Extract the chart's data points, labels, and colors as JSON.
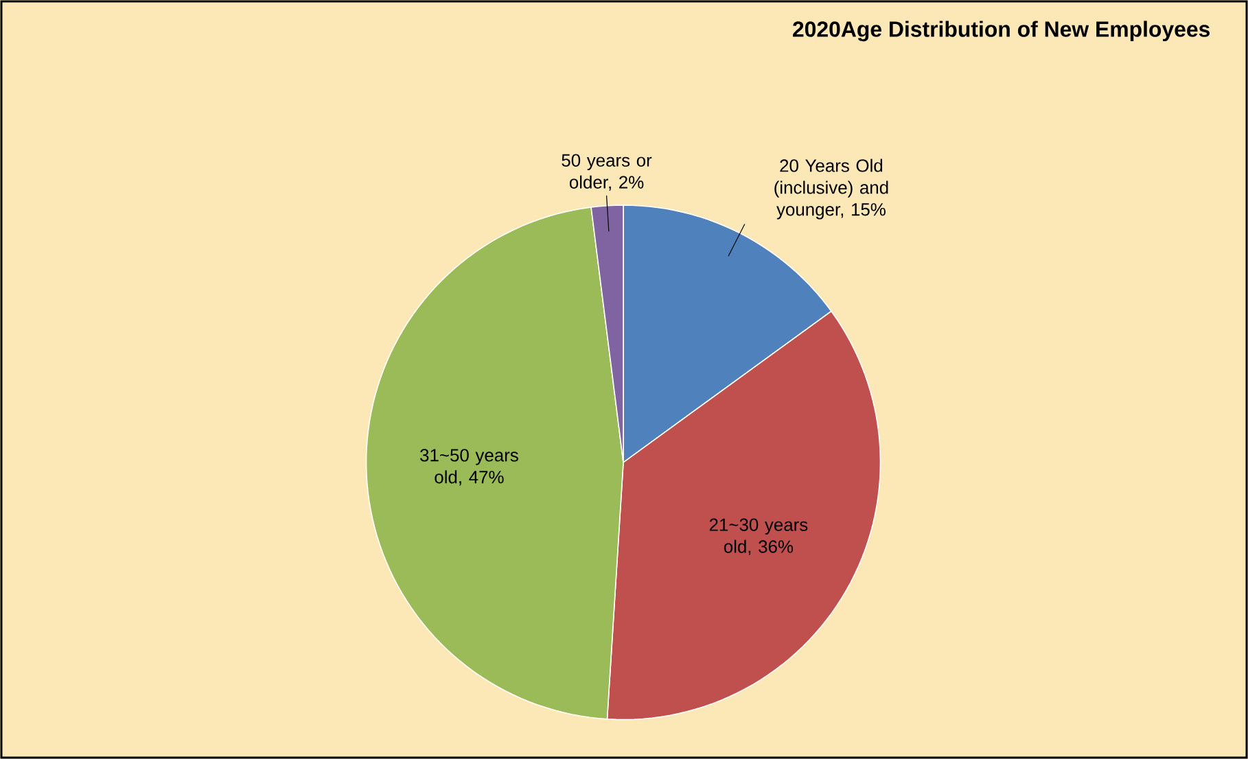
{
  "chart_data": {
    "type": "pie",
    "title": "2020Age Distribution of New Employees",
    "categories": [
      "20 Years Old (inclusive) and younger, 15%",
      "21~30 years old, 36%",
      "31~50 years old, 47%",
      "50 years or older, 2%"
    ],
    "values": [
      15,
      36,
      47,
      2
    ],
    "colors": [
      "#4f81bd",
      "#c0504d",
      "#9bbb59",
      "#8064a2"
    ]
  }
}
